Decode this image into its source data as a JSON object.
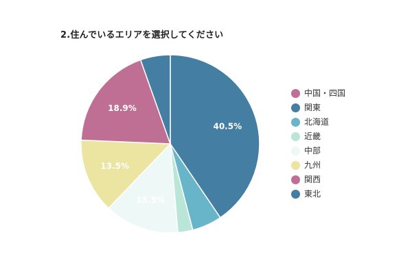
{
  "chart_data": {
    "type": "pie",
    "title": "2.住んでいるエリアを選択してください",
    "slices": [
      {
        "label": "中国・四国",
        "value": 0,
        "color": "#bf6f94",
        "display_label": ""
      },
      {
        "label": "関東",
        "value": 40.5,
        "color": "#447ea2",
        "display_label": "40.5%"
      },
      {
        "label": "北海道",
        "value": 5.4,
        "color": "#68b5ca",
        "display_label": ""
      },
      {
        "label": "近畿",
        "value": 2.7,
        "color": "#b9e6d6",
        "display_label": ""
      },
      {
        "label": "中部",
        "value": 13.5,
        "color": "#eef8f7",
        "display_label": "13.5%"
      },
      {
        "label": "九州",
        "value": 13.5,
        "color": "#ece4a1",
        "display_label": "13.5%"
      },
      {
        "label": "関西",
        "value": 18.9,
        "color": "#bf6f94",
        "display_label": "18.9%"
      },
      {
        "label": "東北",
        "value": 5.4,
        "color": "#447ea2",
        "display_label": ""
      }
    ],
    "legend_position": "right"
  }
}
